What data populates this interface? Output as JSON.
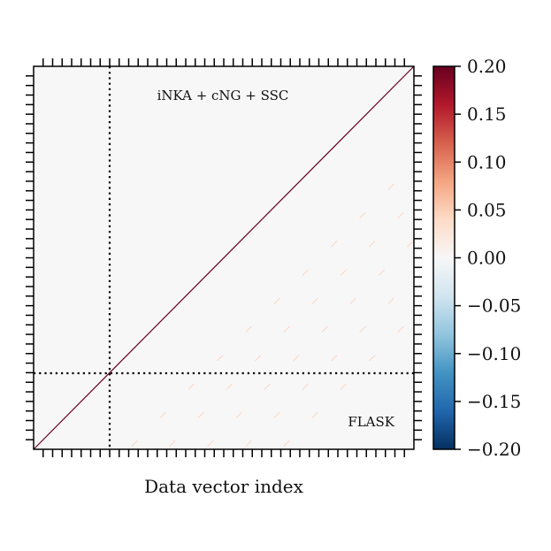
{
  "chart_data": {
    "type": "heatmap",
    "title": "",
    "xlabel": "Data vector index",
    "ylabel": "",
    "annotations": {
      "upper_triangle": "iNKA + cNG + SSC",
      "lower_triangle": "FLASK"
    },
    "colorbar": {
      "colormap": "RdBu_r",
      "vmin": -0.2,
      "vmax": 0.2,
      "tick_values": [
        0.2,
        0.15,
        0.1,
        0.05,
        0.0,
        -0.05,
        -0.1,
        -0.15,
        -0.2
      ],
      "tick_labels": [
        "0.20",
        "0.15",
        "0.10",
        "0.05",
        "0.00",
        "−0.05",
        "−0.10",
        "−0.15",
        "−0.20"
      ]
    },
    "matrix": {
      "size": 40,
      "diagonal_value": 0.2,
      "block_boundary_index": 8,
      "background_value": 0.0,
      "typical_offdiagonal_value": 0.05
    },
    "x_ticks_count": 40,
    "y_ticks_count": 40,
    "tick_labels_shown": false,
    "grid": false
  }
}
